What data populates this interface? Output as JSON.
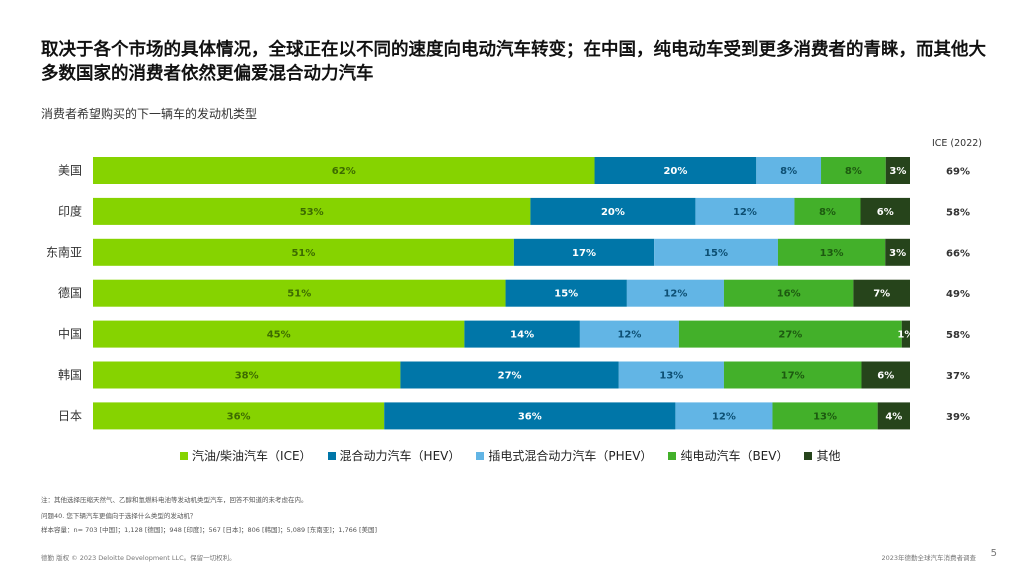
{
  "page": {
    "title": "取决于各个市场的具体情况，全球正在以不同的速度向电动汽车转变；在中国，纯电动车受到更多消费者的青睐，而其他大多数国家的消费者依然更偏爱混合动力汽车",
    "subtitle": "消费者希望购买的下一辆车的发动机类型",
    "notes": [
      "注：其他选择压缩天然气、乙醇和氢燃料电池等发动机类型汽车，回答不知道的未考虑在内。",
      "问题40. 您下辆汽车更偏向于选择什么类型的发动机？",
      "样本容量：n= 703 [中国]；1,128 [德国]；948 [印度]；567 [日本]；806 [韩国]；5,089 [东南亚]；1,766 [美国]"
    ],
    "footer_left": "德勤 版权 © 2023 Deloitte Development LLC。保留一切权利。",
    "footer_right": "2023年德勤全球汽车消费者调查",
    "page_number": "5"
  },
  "chart_data": {
    "type": "bar",
    "orientation": "horizontal",
    "stacked": true,
    "categories": [
      "美国",
      "印度",
      "东南亚",
      "德国",
      "中国",
      "韩国",
      "日本"
    ],
    "series": [
      {
        "name": "汽油/柴油汽车（ICE）",
        "color": "#86d300",
        "label_color": "#3d6b00",
        "values": [
          62,
          53,
          51,
          51,
          45,
          38,
          36
        ]
      },
      {
        "name": "混合动力汽车（HEV）",
        "color": "#0076a8",
        "label_color": "#ffffff",
        "values": [
          20,
          20,
          17,
          15,
          14,
          27,
          36
        ]
      },
      {
        "name": "插电式混合动力汽车（PHEV）",
        "color": "#62b5e5",
        "label_color": "#0d4f73",
        "values": [
          8,
          12,
          15,
          12,
          12,
          13,
          12
        ]
      },
      {
        "name": "纯电动汽车（BEV）",
        "color": "#43b02a",
        "label_color": "#1d5a10",
        "values": [
          8,
          8,
          13,
          16,
          27,
          17,
          13
        ]
      },
      {
        "name": "其他",
        "color": "#26441b",
        "label_color": "#ffffff",
        "values": [
          3,
          6,
          3,
          7,
          1,
          6,
          4
        ]
      }
    ],
    "value_suffix": "%",
    "side_column": {
      "header": "ICE (2022)",
      "values": [
        "69%",
        "58%",
        "66%",
        "49%",
        "58%",
        "37%",
        "39%"
      ]
    },
    "legend_position": "bottom"
  }
}
